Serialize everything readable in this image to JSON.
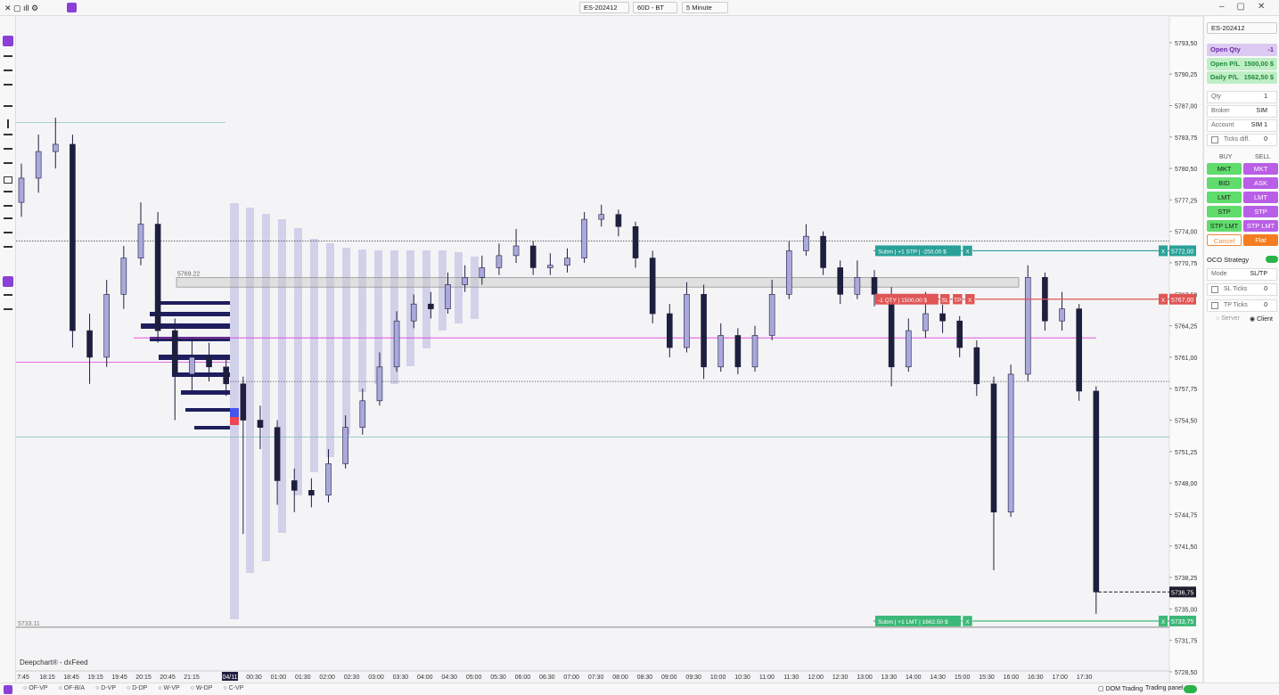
{
  "toolbar": {
    "symbol": "ES-202412",
    "range": "60D - BT",
    "interval": "5 Minute"
  },
  "chart_data": {
    "type": "candlestick",
    "ylim": [
      5728.5,
      5796.25
    ],
    "yticks": [
      {
        "value": 5793.5,
        "label": "5793,50"
      },
      {
        "value": 5790.25,
        "label": "5790,25"
      },
      {
        "value": 5787,
        "label": "5787,00"
      },
      {
        "value": 5783.75,
        "label": "5783,75"
      },
      {
        "value": 5780.5,
        "label": "5780,50"
      },
      {
        "value": 5777.25,
        "label": "5777,25"
      },
      {
        "value": 5774,
        "label": "5774,00"
      },
      {
        "value": 5770.75,
        "label": "5770,75"
      },
      {
        "value": 5767.5,
        "label": "5767,50"
      },
      {
        "value": 5764.25,
        "label": "5764,25"
      },
      {
        "value": 5761,
        "label": "5761,00"
      },
      {
        "value": 5757.75,
        "label": "5757,75"
      },
      {
        "value": 5754.5,
        "label": "5754,50"
      },
      {
        "value": 5751.25,
        "label": "5751,25"
      },
      {
        "value": 5748,
        "label": "5748,00"
      },
      {
        "value": 5744.75,
        "label": "5744,75"
      },
      {
        "value": 5741.5,
        "label": "5741,50"
      },
      {
        "value": 5738.25,
        "label": "5738,25"
      },
      {
        "value": 5735,
        "label": "5735,00"
      },
      {
        "value": 5731.75,
        "label": "5731,75"
      },
      {
        "value": 5728.5,
        "label": "5728,50"
      }
    ],
    "x_labels": [
      "7:45",
      "18:15",
      "18:45",
      "19:15",
      "19:45",
      "20:15",
      "20:45",
      "21:15",
      "04/11",
      "00:30",
      "01:00",
      "01:30",
      "02:00",
      "02:30",
      "03:00",
      "03:30",
      "04:00",
      "04:30",
      "05:00",
      "05:30",
      "06:00",
      "06:30",
      "07:00",
      "07:30",
      "08:00",
      "08:30",
      "09:00",
      "09:30",
      "10:00",
      "10:30",
      "11:00",
      "11:30",
      "12:00",
      "12:30",
      "13:00",
      "13:30",
      "14:00",
      "14:30",
      "15:00",
      "15:30",
      "16:00",
      "16:30",
      "17:00",
      "17:30"
    ],
    "open": [
      5777,
      5779.5,
      5782.25,
      5783,
      5763.75,
      5761,
      5767.5,
      5771.25,
      5774.75,
      5763.75,
      5759.25,
      5761,
      5760,
      5758.25,
      5754.5,
      5753.75,
      5748.25,
      5747.25,
      5746.75,
      5750,
      5753.75,
      5756.5,
      5760,
      5764.75,
      5766.5,
      5766,
      5768.5,
      5769.25,
      5770.25,
      5771.5,
      5772.5,
      5770.25,
      5770.5,
      5771.25,
      5775.25,
      5775.75,
      5774.5,
      5771.25,
      5765.5,
      5762,
      5767.5,
      5760,
      5763.25,
      5760,
      5763.25,
      5767.5,
      5772,
      5773.5,
      5770.25,
      5767.5,
      5769.25,
      5767.5,
      5760,
      5763.75,
      5765.5,
      5764.75,
      5762,
      5758.25,
      5745,
      5759.25,
      5769.25,
      5764.75,
      5766,
      5757.5
    ],
    "high": [
      5781,
      5784,
      5785.75,
      5784,
      5765.5,
      5769,
      5772.5,
      5777,
      5776,
      5765,
      5763,
      5762.5,
      5761,
      5759,
      5756,
      5754.5,
      5749.5,
      5748.5,
      5751.5,
      5755,
      5757.75,
      5761.5,
      5765.75,
      5767.5,
      5767.75,
      5769.75,
      5770.5,
      5771.5,
      5772.75,
      5774.25,
      5773,
      5771.75,
      5772.25,
      5776,
      5776.75,
      5776.25,
      5775,
      5772,
      5766.5,
      5768.75,
      5768.5,
      5764.5,
      5764,
      5764.25,
      5769,
      5773,
      5774.75,
      5774,
      5771,
      5771,
      5770,
      5768.25,
      5765,
      5767.75,
      5766.75,
      5765.25,
      5762.75,
      5759,
      5760.25,
      5770.5,
      5769.75,
      5767.75,
      5766.5,
      5758
    ],
    "low": [
      5775.5,
      5778,
      5780.5,
      5762,
      5758.25,
      5760,
      5766,
      5770.5,
      5762.5,
      5754.5,
      5757.5,
      5758.5,
      5757,
      5742.75,
      5751.5,
      5745.75,
      5745,
      5745.5,
      5746,
      5749.5,
      5753,
      5756,
      5759.5,
      5764,
      5765,
      5765.5,
      5767.75,
      5768.5,
      5769.5,
      5770.75,
      5769.5,
      5769.5,
      5769.75,
      5770.75,
      5774.5,
      5773.5,
      5770.25,
      5764.5,
      5761,
      5761.5,
      5758.75,
      5759.5,
      5759.25,
      5759.5,
      5762.75,
      5767,
      5771.5,
      5769.5,
      5766.5,
      5767,
      5766.25,
      5758,
      5759.5,
      5763,
      5763.5,
      5761,
      5757,
      5739,
      5744.5,
      5758.5,
      5763.75,
      5763.75,
      5756.5,
      5734.5
    ],
    "close": [
      5779.5,
      5782.25,
      5783,
      5763.75,
      5761,
      5767.5,
      5771.25,
      5774.75,
      5763.75,
      5759.25,
      5761,
      5760,
      5758.25,
      5754.5,
      5753.75,
      5748.25,
      5747.25,
      5746.75,
      5750,
      5753.75,
      5756.5,
      5760,
      5764.75,
      5766.5,
      5766,
      5768.5,
      5769.25,
      5770.25,
      5771.5,
      5772.5,
      5770.25,
      5770.5,
      5771.25,
      5775.25,
      5775.75,
      5774.5,
      5771.25,
      5765.5,
      5762,
      5767.5,
      5760,
      5763.25,
      5760,
      5763.25,
      5767.5,
      5772,
      5773.5,
      5770.25,
      5767.5,
      5769.25,
      5767.5,
      5760,
      5763.75,
      5765.5,
      5764.75,
      5762,
      5758.25,
      5745,
      5759.25,
      5769.25,
      5764.75,
      5766,
      5757.5,
      5736.75
    ],
    "up_color": "#aaa8dc",
    "down_color": "#1e1e3e",
    "levels": [
      {
        "price": 5785.25,
        "color": "#8fc4b8",
        "style": "solid"
      },
      {
        "price": 5773,
        "color": "#555555",
        "style": "dotted"
      },
      {
        "price": 5758.5,
        "color": "#555555",
        "style": "dotted"
      },
      {
        "price": 5752.75,
        "color": "#8fc4b8",
        "style": "solid"
      },
      {
        "price": 5760.5,
        "color": "#e03ce0",
        "style": "solid"
      },
      {
        "price": 5763,
        "color": "#e03ce0",
        "style": "solid"
      }
    ],
    "zone": {
      "top": 5769.22,
      "bottom": 5768.25,
      "label": "5769.22"
    },
    "level_label": {
      "price": 5733.11,
      "label": "5733.11"
    },
    "orders": [
      {
        "price": 5772,
        "price_label": "5772,00",
        "text": "Subm | +1 STP | -250,00 $",
        "buttons": [
          "X"
        ],
        "end_button": "X",
        "color": "#2aa198"
      },
      {
        "price": 5767,
        "price_label": "5767,00",
        "text": "-1 QTY | 1500,00 $",
        "buttons": [
          "SL",
          "TP",
          "X"
        ],
        "end_button": "X",
        "color": "#e05555"
      },
      {
        "price": 5733.75,
        "price_label": "5733,75",
        "text": "Subm | +1 LMT | 1662,50 $",
        "buttons": [
          "X"
        ],
        "end_button": "X",
        "color": "#3cb878"
      }
    ],
    "last_price": {
      "value": 5736.75,
      "label": "5736,75"
    },
    "watermark": "Deepchart® - dxFeed"
  },
  "panel": {
    "symbol": "ES-202412",
    "open_qty": {
      "label": "Open Qty",
      "value": "-1"
    },
    "open_pl": {
      "label": "Open P/L",
      "value": "1500,00 $"
    },
    "daily_pl": {
      "label": "Daily P/L",
      "value": "1562,50 $"
    },
    "qty": {
      "label": "Qty",
      "value": "1"
    },
    "broker": {
      "label": "Broker",
      "value": "SIM"
    },
    "account": {
      "label": "Account",
      "value": "SIM 1"
    },
    "ticks_diff": {
      "label": "Ticks diff.",
      "value": "0"
    },
    "buy": "BUY",
    "sell": "SELL",
    "buttons": [
      [
        "MKT",
        "MKT"
      ],
      [
        "BID",
        "ASK"
      ],
      [
        "LMT",
        "LMT"
      ],
      [
        "STP",
        "STP"
      ],
      [
        "STP LMT",
        "STP LMT"
      ]
    ],
    "cancel": "Cancel",
    "flat": "Flat",
    "oco": "OCO Strategy",
    "mode": {
      "label": "Mode",
      "value": "SL/TP"
    },
    "sl_ticks": {
      "label": "SL Ticks",
      "value": "0"
    },
    "tp_ticks": {
      "label": "TP Ticks",
      "value": "0"
    },
    "server": "Server",
    "client": "Client"
  },
  "bottom_bar": {
    "studies": [
      "OF-VP",
      "OF-B/A",
      "D-VP",
      "D-DP",
      "W-VP",
      "W-DP",
      "C-VP"
    ],
    "dom": "DOM Trading",
    "trading_panel": "Trading panel"
  }
}
